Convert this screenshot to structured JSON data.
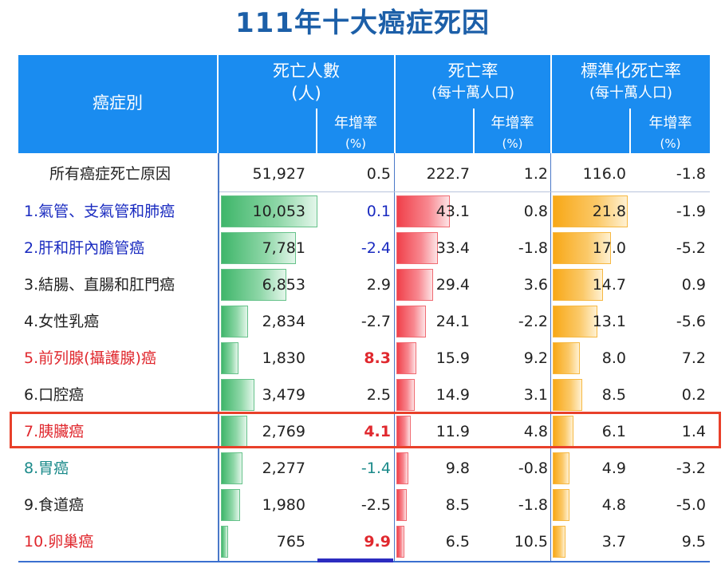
{
  "title": "111年十大癌症死因",
  "header": {
    "cancer_type": "癌症別",
    "deaths": "死亡人數",
    "deaths_unit": "(人)",
    "rate": "死亡率",
    "rate_unit": "(每十萬人口)",
    "std_rate": "標準化死亡率",
    "std_rate_unit": "(每十萬人口)",
    "growth": "年增率",
    "growth_unit": "(%)"
  },
  "colors": {
    "header_bg": "#1a8cf0",
    "title": "#1c5fa8",
    "blue_text": "#1a2bc0",
    "red_text": "#e0282e",
    "teal_text": "#1b8a8a",
    "highlight_border": "#e8402a"
  },
  "rows": [
    {
      "name": "所有癌症死亡原因",
      "deaths": "51,927",
      "deaths_growth": "0.5",
      "rate": "222.7",
      "rate_growth": "1.2",
      "std": "116.0",
      "std_growth": "-1.8",
      "color": "#222222",
      "growth_color": "#222222",
      "bold_growth": false
    },
    {
      "name": "1.氣管、支氣管和肺癌",
      "deaths": "10,053",
      "deaths_growth": "0.1",
      "rate": "43.1",
      "rate_growth": "0.8",
      "std": "21.8",
      "std_growth": "-1.9",
      "color": "#1a2bc0",
      "growth_color": "#1a2bc0",
      "bold_growth": false
    },
    {
      "name": "2.肝和肝內膽管癌",
      "deaths": "7,781",
      "deaths_growth": "-2.4",
      "rate": "33.4",
      "rate_growth": "-1.8",
      "std": "17.0",
      "std_growth": "-5.2",
      "color": "#1a2bc0",
      "growth_color": "#1a2bc0",
      "bold_growth": false
    },
    {
      "name": "3.結腸、直腸和肛門癌",
      "deaths": "6,853",
      "deaths_growth": "2.9",
      "rate": "29.4",
      "rate_growth": "3.6",
      "std": "14.7",
      "std_growth": "0.9",
      "color": "#222222",
      "growth_color": "#222222",
      "bold_growth": false
    },
    {
      "name": "4.女性乳癌",
      "deaths": "2,834",
      "deaths_growth": "-2.7",
      "rate": "24.1",
      "rate_growth": "-2.2",
      "std": "13.1",
      "std_growth": "-5.6",
      "color": "#222222",
      "growth_color": "#222222",
      "bold_growth": false
    },
    {
      "name": "5.前列腺(攝護腺)癌",
      "deaths": "1,830",
      "deaths_growth": "8.3",
      "rate": "15.9",
      "rate_growth": "9.2",
      "std": "8.0",
      "std_growth": "7.2",
      "color": "#e0282e",
      "growth_color": "#e0282e",
      "bold_growth": true
    },
    {
      "name": "6.口腔癌",
      "deaths": "3,479",
      "deaths_growth": "2.5",
      "rate": "14.9",
      "rate_growth": "3.1",
      "std": "8.5",
      "std_growth": "0.2",
      "color": "#222222",
      "growth_color": "#222222",
      "bold_growth": false
    },
    {
      "name": "7.胰臟癌",
      "deaths": "2,769",
      "deaths_growth": "4.1",
      "rate": "11.9",
      "rate_growth": "4.8",
      "std": "6.1",
      "std_growth": "1.4",
      "color": "#e0282e",
      "growth_color": "#e0282e",
      "bold_growth": true
    },
    {
      "name": "8.胃癌",
      "deaths": "2,277",
      "deaths_growth": "-1.4",
      "rate": "9.8",
      "rate_growth": "-0.8",
      "std": "4.9",
      "std_growth": "-3.2",
      "color": "#1b8a8a",
      "growth_color": "#1b8a8a",
      "bold_growth": false
    },
    {
      "name": "9.食道癌",
      "deaths": "1,980",
      "deaths_growth": "-2.5",
      "rate": "8.5",
      "rate_growth": "-1.8",
      "std": "4.8",
      "std_growth": "-5.0",
      "color": "#222222",
      "growth_color": "#222222",
      "bold_growth": false
    },
    {
      "name": "10.卵巢癌",
      "deaths": "765",
      "deaths_growth": "9.9",
      "rate": "6.5",
      "rate_growth": "10.5",
      "std": "3.7",
      "std_growth": "9.5",
      "color": "#e0282e",
      "growth_color": "#e0282e",
      "bold_growth": true
    }
  ]
}
